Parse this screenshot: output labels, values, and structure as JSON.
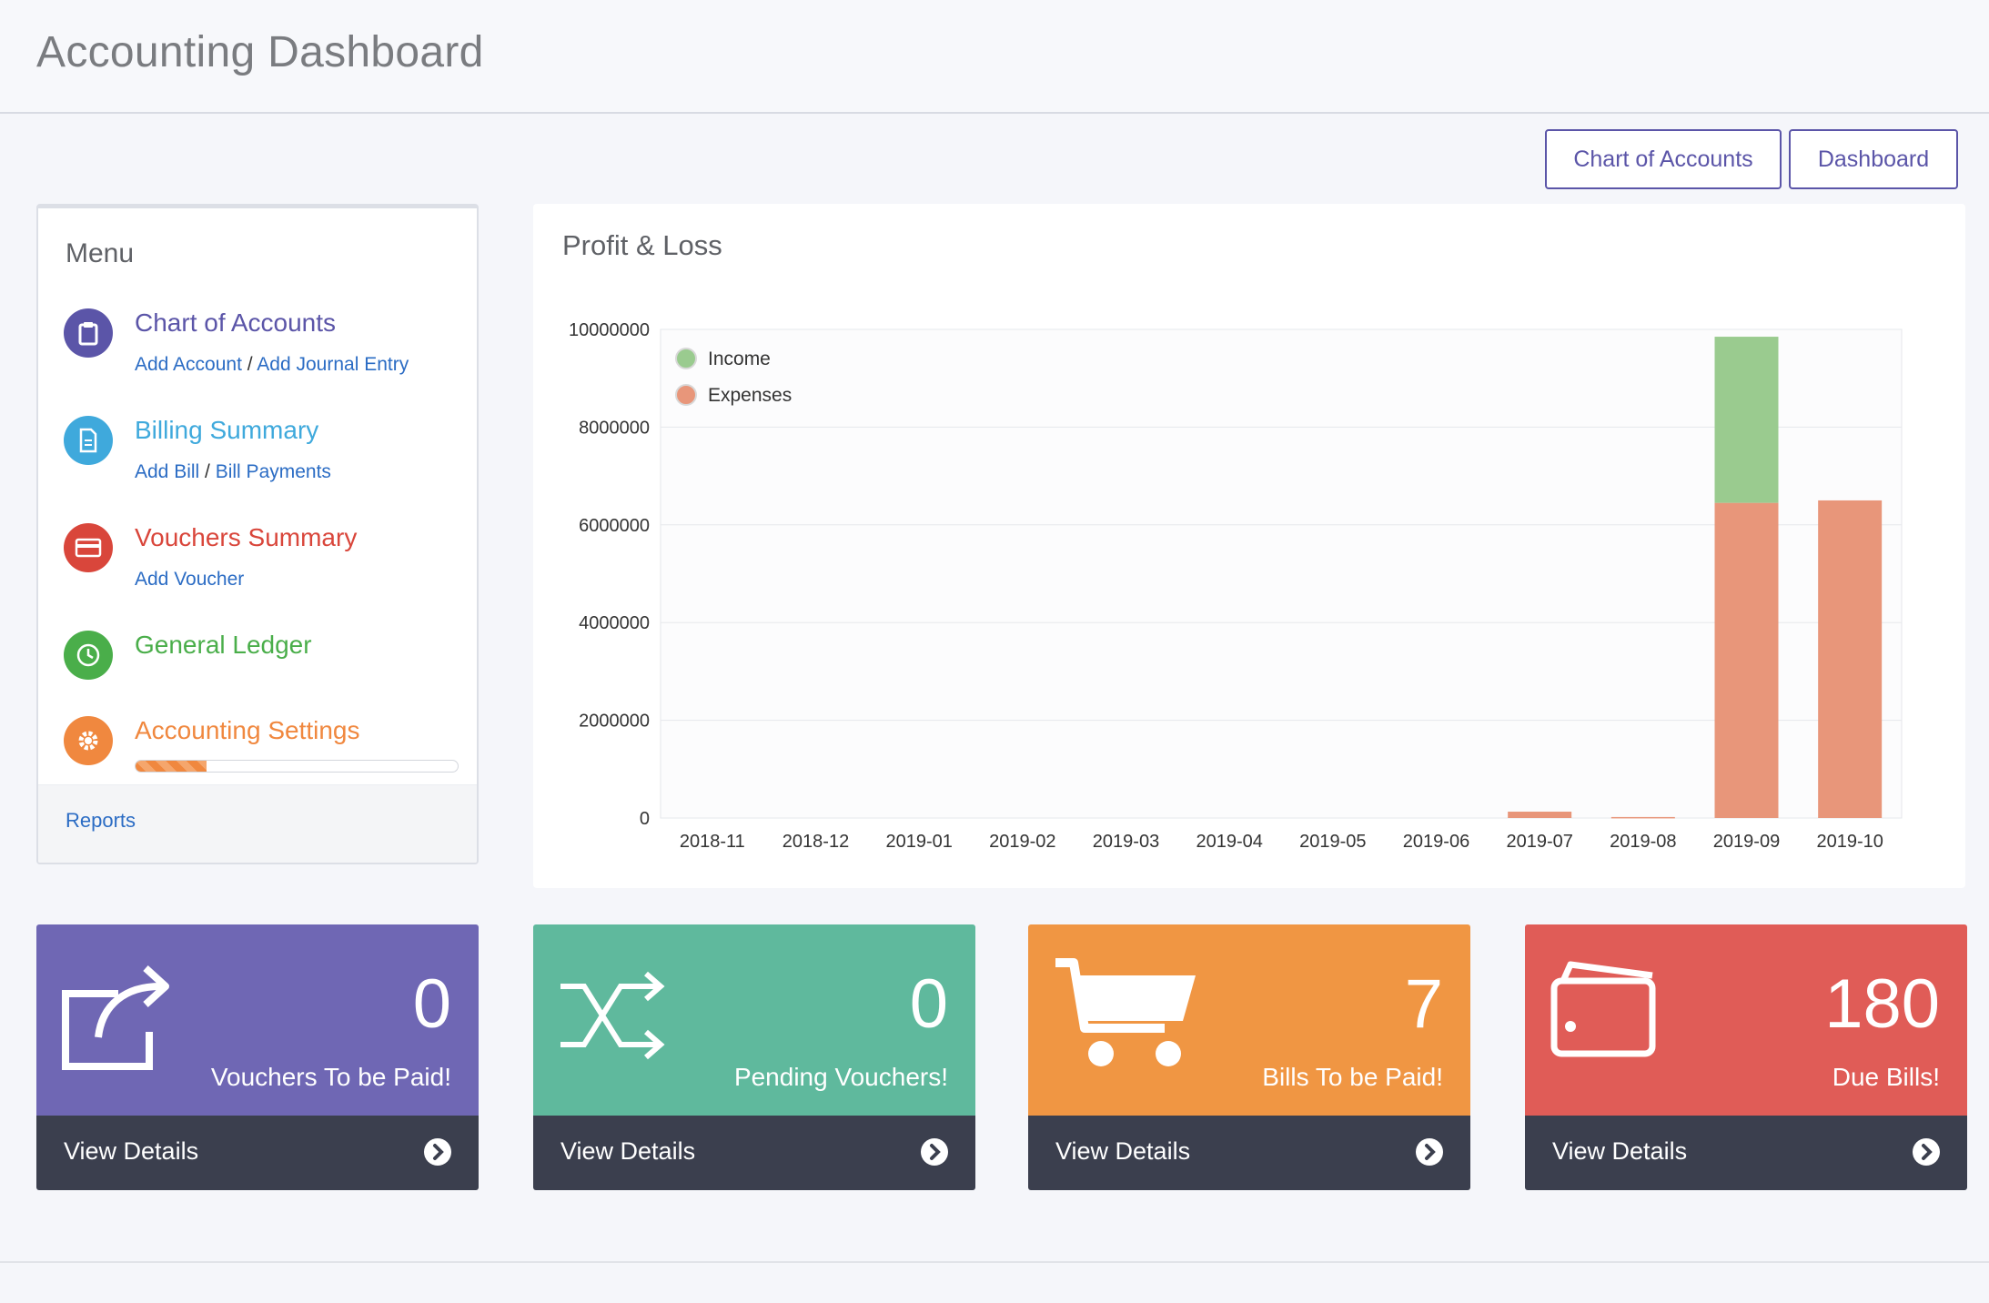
{
  "page": {
    "title": "Accounting Dashboard"
  },
  "toolbar": {
    "chart_of_accounts": "Chart of Accounts",
    "dashboard": "Dashboard"
  },
  "menu": {
    "heading": "Menu",
    "items": [
      {
        "title": "Chart of Accounts",
        "color": "#5b55a8",
        "icon": "clipboard-icon",
        "links": [
          "Add Account",
          "Add Journal Entry"
        ]
      },
      {
        "title": "Billing Summary",
        "color": "#3fa9dc",
        "icon": "document-icon",
        "links": [
          "Add Bill",
          "Bill Payments"
        ]
      },
      {
        "title": "Vouchers Summary",
        "color": "#d9463b",
        "icon": "credit-card-icon",
        "links": [
          "Add Voucher"
        ]
      },
      {
        "title": "General Ledger",
        "color": "#4aae4a",
        "icon": "clock-icon",
        "links": []
      },
      {
        "title": "Accounting Settings",
        "color": "#f0883f",
        "icon": "gear-icon",
        "links": [],
        "progress": 0.22
      }
    ],
    "footer_link": "Reports"
  },
  "chart_panel": {
    "title": "Profit & Loss"
  },
  "chart_data": {
    "type": "bar",
    "stacked": true,
    "categories": [
      "2018-11",
      "2018-12",
      "2019-01",
      "2019-02",
      "2019-03",
      "2019-04",
      "2019-05",
      "2019-06",
      "2019-07",
      "2019-08",
      "2019-09",
      "2019-10"
    ],
    "series": [
      {
        "name": "Expenses",
        "color": "#e8967a",
        "values": [
          0,
          0,
          0,
          0,
          0,
          0,
          0,
          0,
          130000,
          20000,
          6450000,
          6500000
        ]
      },
      {
        "name": "Income",
        "color": "#9acb8f",
        "values": [
          0,
          0,
          0,
          0,
          0,
          0,
          0,
          0,
          0,
          0,
          3400000,
          0
        ]
      }
    ],
    "ylim": [
      0,
      10000000
    ],
    "yticks": [
      "0",
      "2000000",
      "4000000",
      "6000000",
      "8000000",
      "10000000"
    ],
    "legend_position": "top-left",
    "grid": true
  },
  "cards": [
    {
      "value": "0",
      "label": "Vouchers To be Paid!",
      "action": "View Details",
      "color": "#6f67b4",
      "icon": "share-icon"
    },
    {
      "value": "0",
      "label": "Pending Vouchers!",
      "action": "View Details",
      "color": "#5fb99d",
      "icon": "shuffle-icon"
    },
    {
      "value": "7",
      "label": "Bills To be Paid!",
      "action": "View Details",
      "color": "#f09643",
      "icon": "shopping-cart-icon"
    },
    {
      "value": "180",
      "label": "Due Bills!",
      "action": "View Details",
      "color": "#e05c57",
      "icon": "wallet-icon"
    }
  ]
}
